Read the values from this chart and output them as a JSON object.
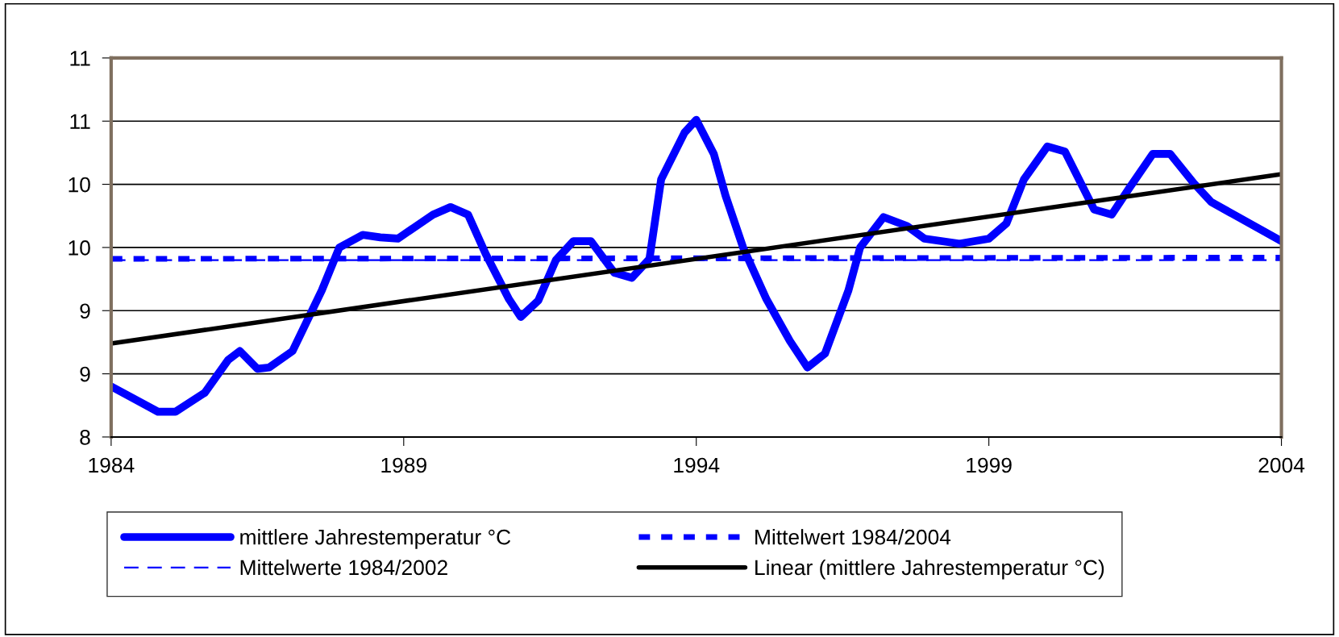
{
  "chart_data": {
    "type": "line",
    "xlim": [
      1984,
      2004
    ],
    "xticks": [
      1984,
      1989,
      1994,
      1999,
      2004
    ],
    "ylim": [
      8,
      11
    ],
    "yticks": [
      8,
      {
        "value": 8.5,
        "label": "9"
      },
      {
        "value": 9,
        "label": "9"
      },
      {
        "value": 9.5,
        "label": "10"
      },
      {
        "value": 10,
        "label": "10"
      },
      {
        "value": 10.5,
        "label": "11"
      },
      {
        "value": 11,
        "label": "11"
      }
    ],
    "grid": "y",
    "legend": "bottom",
    "marker": "none",
    "series": [
      {
        "name": "mittlere Jahrestemperatur °C",
        "color": "#0000ff",
        "line_style": "solid",
        "x": [
          1984,
          1984.8,
          1985.1,
          1985.6,
          1986.0,
          1986.2,
          1986.5,
          1986.7,
          1987.1,
          1987.6,
          1987.9,
          1988.3,
          1988.6,
          1988.9,
          1989.5,
          1989.8,
          1990.1,
          1990.4,
          1990.8,
          1991.0,
          1991.3,
          1991.6,
          1991.9,
          1992.2,
          1992.6,
          1992.9,
          1993.2,
          1993.4,
          1993.8,
          1994.0,
          1994.3,
          1994.5,
          1994.8,
          1995.2,
          1995.6,
          1995.9,
          1996.2,
          1996.6,
          1996.8,
          1997.2,
          1997.6,
          1997.9,
          1998.5,
          1999.0,
          1999.3,
          1999.6,
          2000.0,
          2000.3,
          2000.8,
          2001.1,
          2001.4,
          2001.8,
          2002.1,
          2002.5,
          2002.8,
          2004.0
        ],
        "values": [
          8.4,
          8.2,
          8.2,
          8.35,
          8.61,
          8.68,
          8.54,
          8.55,
          8.68,
          9.16,
          9.5,
          9.6,
          9.58,
          9.57,
          9.76,
          9.82,
          9.76,
          9.45,
          9.09,
          8.95,
          9.08,
          9.4,
          9.55,
          9.55,
          9.3,
          9.26,
          9.41,
          10.04,
          10.41,
          10.51,
          10.24,
          9.91,
          9.5,
          9.09,
          8.76,
          8.55,
          8.66,
          9.16,
          9.5,
          9.74,
          9.67,
          9.57,
          9.53,
          9.57,
          9.69,
          10.04,
          10.3,
          10.26,
          9.8,
          9.76,
          9.97,
          10.24,
          10.24,
          10.01,
          9.86,
          9.55
        ]
      },
      {
        "name": "Mittelwert 1984/2004",
        "color": "#0000ff",
        "line_style": "dashed",
        "x": [
          1984,
          2004
        ],
        "values": [
          9.41,
          9.42
        ]
      },
      {
        "name": "Mittelwerte 1984/2002",
        "color": "#0000ff",
        "line_style": "dashed",
        "x": [
          1984,
          2004
        ],
        "values": [
          9.4,
          9.4
        ]
      },
      {
        "name": "Linear (mittlere Jahrestemperatur °C)",
        "color": "#000000",
        "line_style": "solid",
        "x": [
          1984,
          2004
        ],
        "values": [
          8.74,
          10.08
        ]
      }
    ]
  }
}
